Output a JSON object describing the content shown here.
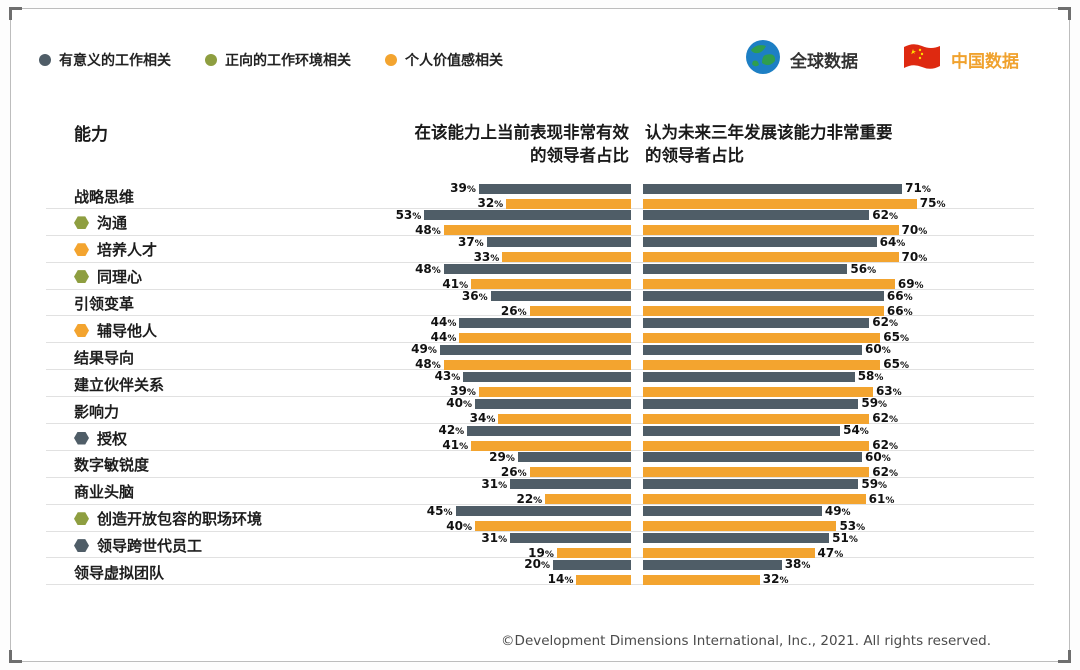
{
  "page": {
    "footer": "©Development Dimensions International, Inc., 2021. All rights reserved."
  },
  "legend": {
    "items": [
      {
        "id": "meaningful-work",
        "label": "有意义的工作相关",
        "color": "#4f5d67"
      },
      {
        "id": "positive-environment",
        "label": "正向的工作环境相关",
        "color": "#8e9e40"
      },
      {
        "id": "personal-value",
        "label": "个人价值感相关",
        "color": "#f3a42f"
      }
    ]
  },
  "datasets": {
    "global": {
      "label": "全球数据",
      "color": "#4f5d67"
    },
    "china": {
      "label": "中国数据",
      "color": "#f3a42f"
    }
  },
  "chart_data": {
    "type": "bar",
    "orientation": "horizontal",
    "capability_header": "能力",
    "charts": [
      {
        "id": "current",
        "title": "在该能力上当前表现非常有效\n的领导者占比",
        "align": "right",
        "xlim": [
          0,
          55
        ],
        "unit": "%"
      },
      {
        "id": "future",
        "title": "认为未来三年发展该能力非常重要\n的领导者占比",
        "align": "left",
        "xlim": [
          0,
          76
        ],
        "unit": "%"
      }
    ],
    "series": [
      {
        "key": "global",
        "name": "全球数据",
        "color": "#4f5d67"
      },
      {
        "key": "china",
        "name": "中国数据",
        "color": "#f3a42f"
      }
    ],
    "rows": [
      {
        "label": "战略思维",
        "category": null,
        "current": {
          "global": 39,
          "china": 32
        },
        "future": {
          "global": 71,
          "china": 75
        }
      },
      {
        "label": "沟通",
        "category": "positive-environment",
        "current": {
          "global": 53,
          "china": 48
        },
        "future": {
          "global": 62,
          "china": 70
        }
      },
      {
        "label": "培养人才",
        "category": "personal-value",
        "current": {
          "global": 37,
          "china": 33
        },
        "future": {
          "global": 64,
          "china": 70
        }
      },
      {
        "label": "同理心",
        "category": "positive-environment",
        "current": {
          "global": 48,
          "china": 41
        },
        "future": {
          "global": 56,
          "china": 69
        }
      },
      {
        "label": "引领变革",
        "category": null,
        "current": {
          "global": 36,
          "china": 26
        },
        "future": {
          "global": 66,
          "china": 66
        }
      },
      {
        "label": "辅导他人",
        "category": "personal-value",
        "current": {
          "global": 44,
          "china": 44
        },
        "future": {
          "global": 62,
          "china": 65
        }
      },
      {
        "label": "结果导向",
        "category": null,
        "current": {
          "global": 49,
          "china": 48
        },
        "future": {
          "global": 60,
          "china": 65
        }
      },
      {
        "label": "建立伙伴关系",
        "category": null,
        "current": {
          "global": 43,
          "china": 39
        },
        "future": {
          "global": 58,
          "china": 63
        }
      },
      {
        "label": "影响力",
        "category": null,
        "current": {
          "global": 40,
          "china": 34
        },
        "future": {
          "global": 59,
          "china": 62
        }
      },
      {
        "label": "授权",
        "category": "meaningful-work",
        "current": {
          "global": 42,
          "china": 41
        },
        "future": {
          "global": 54,
          "china": 62
        }
      },
      {
        "label": "数字敏锐度",
        "category": null,
        "current": {
          "global": 29,
          "china": 26
        },
        "future": {
          "global": 60,
          "china": 62
        }
      },
      {
        "label": "商业头脑",
        "category": null,
        "current": {
          "global": 31,
          "china": 22
        },
        "future": {
          "global": 59,
          "china": 61
        }
      },
      {
        "label": "创造开放包容的职场环境",
        "category": "positive-environment",
        "current": {
          "global": 45,
          "china": 40
        },
        "future": {
          "global": 49,
          "china": 53
        }
      },
      {
        "label": "领导跨世代员工",
        "category": "meaningful-work",
        "current": {
          "global": 31,
          "china": 19
        },
        "future": {
          "global": 51,
          "china": 47
        }
      },
      {
        "label": "领导虚拟团队",
        "category": null,
        "current": {
          "global": 20,
          "china": 14
        },
        "future": {
          "global": 38,
          "china": 32
        }
      }
    ]
  }
}
